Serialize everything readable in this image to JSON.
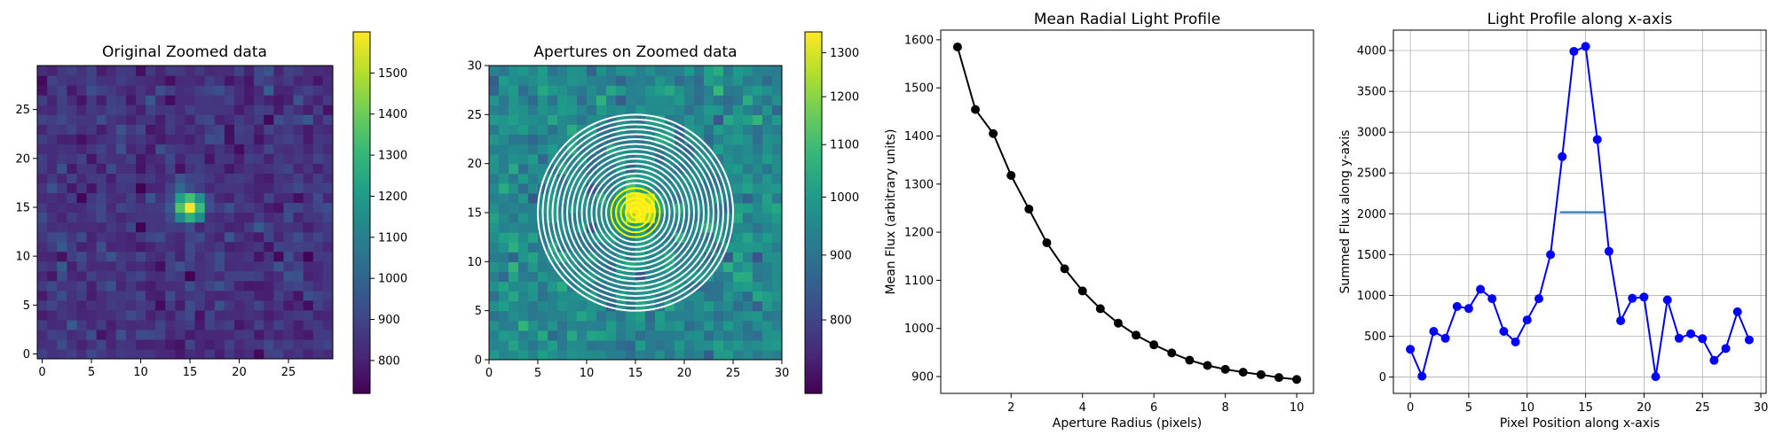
{
  "chart_data": [
    {
      "type": "heatmap",
      "title": "Original Zoomed data",
      "xlabel": "",
      "ylabel": "",
      "colormap": "viridis",
      "xlim": [
        -0.5,
        29.5
      ],
      "ylim": [
        -0.5,
        29.5
      ],
      "xticks": [
        0,
        5,
        10,
        15,
        20,
        25
      ],
      "yticks": [
        0,
        5,
        10,
        15,
        20,
        25
      ],
      "colorbar": {
        "range": [
          720,
          1600
        ],
        "ticks": [
          800,
          900,
          1000,
          1100,
          1200,
          1300,
          1400,
          1500
        ]
      },
      "source": {
        "center": [
          15,
          15
        ],
        "peak": 1590,
        "background": 850
      }
    },
    {
      "type": "heatmap",
      "title": "Apertures on Zoomed data",
      "xlabel": "",
      "ylabel": "",
      "colormap": "viridis",
      "scale": "log",
      "xlim": [
        0,
        30
      ],
      "ylim": [
        0,
        30
      ],
      "xticks": [
        0,
        5,
        10,
        15,
        20,
        25,
        30
      ],
      "yticks": [
        0,
        5,
        10,
        15,
        20,
        25,
        30
      ],
      "colorbar": {
        "range": [
          700,
          1350
        ],
        "ticks": [
          800,
          900,
          1000,
          1100,
          1200,
          1300
        ]
      },
      "apertures": {
        "center": [
          15,
          15
        ],
        "radii": [
          0.5,
          1.0,
          1.5,
          2.0,
          2.5,
          3.0,
          3.5,
          4.0,
          4.5,
          5.0,
          5.5,
          6.0,
          6.5,
          7.0,
          7.5,
          8.0,
          8.5,
          9.0,
          9.5,
          10.0
        ],
        "inner_color": "#ffff00",
        "outer_color": "#ffffff"
      }
    },
    {
      "type": "line",
      "title": "Mean Radial Light Profile",
      "xlabel": "Aperture Radius (pixels)",
      "ylabel": "Mean Flux (arbitrary units)",
      "xlim": [
        0.03,
        10.47
      ],
      "ylim": [
        865,
        1620
      ],
      "xticks": [
        2,
        4,
        6,
        8,
        10
      ],
      "yticks": [
        900,
        1000,
        1100,
        1200,
        1300,
        1400,
        1500,
        1600
      ],
      "color": "#000000",
      "grid": false,
      "x": [
        0.5,
        1.0,
        1.5,
        2.0,
        2.5,
        3.0,
        3.5,
        4.0,
        4.5,
        5.0,
        5.5,
        6.0,
        6.5,
        7.0,
        7.5,
        8.0,
        8.5,
        9.0,
        9.5,
        10.0
      ],
      "y": [
        1585,
        1455,
        1405,
        1318,
        1248,
        1178,
        1124,
        1078,
        1041,
        1011,
        986,
        966,
        949,
        934,
        923,
        915,
        909,
        904,
        898,
        894
      ]
    },
    {
      "type": "line",
      "title": "Light Profile along x-axis",
      "xlabel": "Pixel Position along x-axis",
      "ylabel": "Summed Flux along y-axis",
      "xlim": [
        -1.45,
        30.45
      ],
      "ylim": [
        -200,
        4250
      ],
      "xticks": [
        0,
        5,
        10,
        15,
        20,
        25,
        30
      ],
      "yticks": [
        0,
        500,
        1000,
        1500,
        2000,
        2500,
        3000,
        3500,
        4000
      ],
      "color": "#0000ff",
      "grid": true,
      "x": [
        0,
        1,
        2,
        3,
        4,
        5,
        6,
        7,
        8,
        9,
        10,
        11,
        12,
        13,
        14,
        15,
        16,
        17,
        18,
        19,
        20,
        21,
        22,
        23,
        24,
        25,
        26,
        27,
        28,
        29
      ],
      "y": [
        340,
        10,
        560,
        475,
        865,
        840,
        1075,
        960,
        560,
        430,
        700,
        960,
        1500,
        2700,
        3990,
        4050,
        2910,
        1540,
        690,
        965,
        980,
        5,
        945,
        475,
        530,
        470,
        205,
        350,
        800,
        455
      ],
      "half_max_line": {
        "x": [
          12.8,
          16.7
        ],
        "y": 2020,
        "color": "#1f77b4"
      }
    }
  ]
}
